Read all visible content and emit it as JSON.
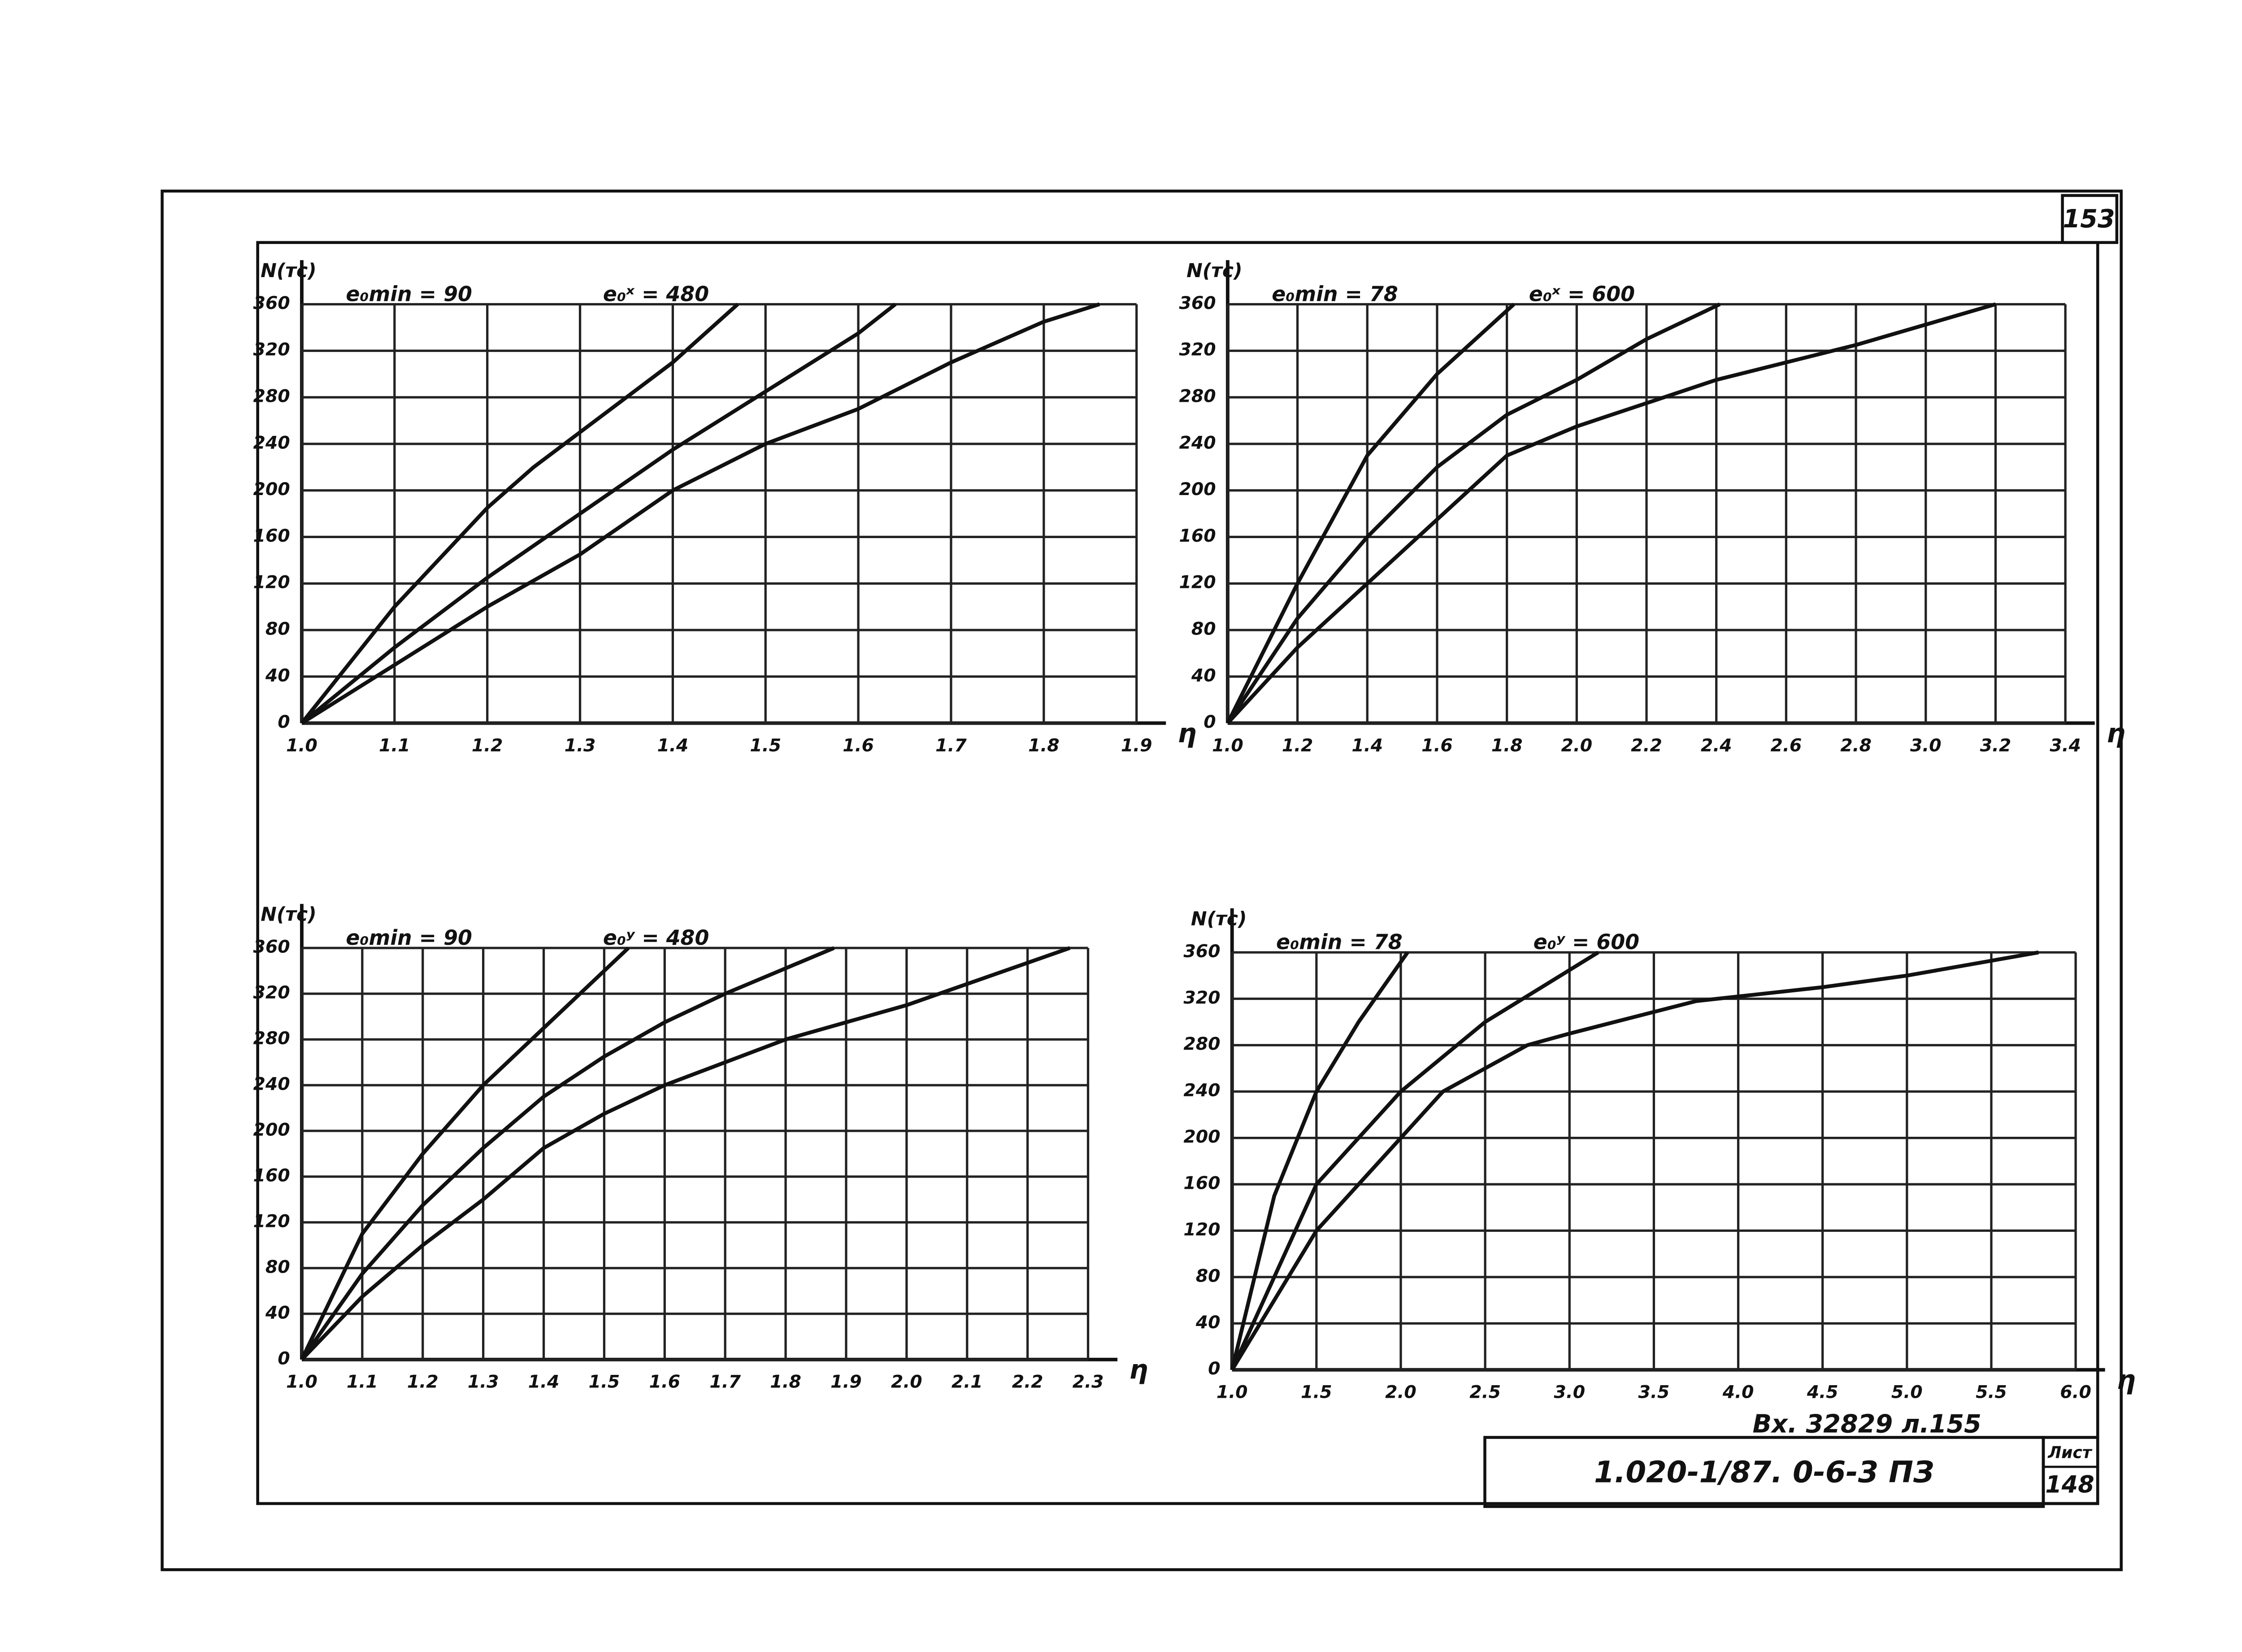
{
  "sheet": {
    "page_number": "153",
    "stamp": "Вх. 32829 л.155",
    "designation": "1.020-1/87. 0-6-3 ПЗ",
    "sheet_label": "Лист",
    "sheet_number": "148"
  },
  "chart_data": [
    {
      "type": "line",
      "ylabel": "N(тс)",
      "xlabel": "η",
      "annotations": [
        "e₀min = 90",
        "e₀ˣ = 480"
      ],
      "xlim": [
        1.0,
        1.9
      ],
      "ylim": [
        0,
        360
      ],
      "xticks": [
        {
          "value": 1.0,
          "label": "1.0"
        },
        1.1,
        1.2,
        1.3,
        1.4,
        1.5,
        1.6,
        1.7,
        1.8,
        1.9
      ],
      "yticks": [
        0,
        40,
        80,
        120,
        160,
        200,
        240,
        280,
        320,
        360
      ],
      "grid": true,
      "series": [
        {
          "color": "#111111",
          "x": [
            1.0,
            1.1,
            1.2,
            1.25,
            1.3,
            1.4,
            1.47
          ],
          "values": [
            0,
            100,
            185,
            220,
            250,
            310,
            360
          ]
        },
        {
          "color": "#111111",
          "x": [
            1.0,
            1.1,
            1.2,
            1.3,
            1.4,
            1.5,
            1.6,
            1.64
          ],
          "values": [
            0,
            65,
            125,
            180,
            235,
            285,
            335,
            360
          ]
        },
        {
          "color": "#111111",
          "x": [
            1.0,
            1.1,
            1.2,
            1.3,
            1.4,
            1.5,
            1.6,
            1.7,
            1.8,
            1.86
          ],
          "values": [
            0,
            50,
            100,
            145,
            200,
            240,
            270,
            310,
            345,
            360
          ]
        }
      ]
    },
    {
      "type": "line",
      "ylabel": "N(тс)",
      "xlabel": "η",
      "annotations": [
        "e₀min = 78",
        "e₀ˣ = 600"
      ],
      "xlim": [
        1.0,
        3.4
      ],
      "ylim": [
        0,
        360
      ],
      "xticks": [
        {
          "value": 1.0,
          "label": "1.0"
        },
        1.2,
        1.4,
        1.6,
        1.8,
        {
          "value": 2.0,
          "label": "2.0"
        },
        2.2,
        2.4,
        2.6,
        2.8,
        {
          "value": 3.0,
          "label": "3.0"
        },
        3.2,
        3.4
      ],
      "yticks": [
        0,
        40,
        80,
        120,
        160,
        200,
        240,
        280,
        320,
        360
      ],
      "grid": true,
      "series": [
        {
          "color": "#111111",
          "x": [
            1.0,
            1.2,
            1.4,
            1.6,
            1.82
          ],
          "values": [
            0,
            120,
            230,
            300,
            360
          ]
        },
        {
          "color": "#111111",
          "x": [
            1.0,
            1.2,
            1.4,
            1.6,
            1.8,
            2.0,
            2.2,
            2.41
          ],
          "values": [
            0,
            90,
            160,
            220,
            265,
            295,
            330,
            360
          ]
        },
        {
          "color": "#111111",
          "x": [
            1.0,
            1.2,
            1.4,
            1.6,
            1.8,
            2.0,
            2.2,
            2.4,
            2.8,
            3.2
          ],
          "values": [
            0,
            65,
            120,
            175,
            230,
            255,
            275,
            295,
            325,
            360
          ]
        }
      ]
    },
    {
      "type": "line",
      "ylabel": "N(тс)",
      "xlabel": "η",
      "annotations": [
        "e₀min = 90",
        "e₀ʸ = 480"
      ],
      "xlim": [
        1.0,
        2.3
      ],
      "ylim": [
        0,
        360
      ],
      "xticks": [
        {
          "value": 1.0,
          "label": "1.0"
        },
        1.1,
        1.2,
        1.3,
        1.4,
        1.5,
        1.6,
        1.7,
        1.8,
        1.9,
        {
          "value": 2.0,
          "label": "2.0"
        },
        2.1,
        2.2,
        2.3
      ],
      "yticks": [
        0,
        40,
        80,
        120,
        160,
        200,
        240,
        280,
        320,
        360
      ],
      "grid": true,
      "series": [
        {
          "color": "#111111",
          "x": [
            1.0,
            1.1,
            1.2,
            1.3,
            1.4,
            1.54
          ],
          "values": [
            0,
            110,
            180,
            240,
            290,
            360
          ]
        },
        {
          "color": "#111111",
          "x": [
            1.0,
            1.1,
            1.2,
            1.3,
            1.4,
            1.5,
            1.6,
            1.7,
            1.88
          ],
          "values": [
            0,
            75,
            135,
            185,
            230,
            265,
            295,
            320,
            360
          ]
        },
        {
          "color": "#111111",
          "x": [
            1.0,
            1.1,
            1.2,
            1.3,
            1.4,
            1.5,
            1.6,
            1.8,
            2.0,
            2.27
          ],
          "values": [
            0,
            55,
            100,
            140,
            185,
            215,
            240,
            280,
            310,
            360
          ]
        }
      ]
    },
    {
      "type": "line",
      "ylabel": "N(тс)",
      "xlabel": "η",
      "annotations": [
        "e₀min = 78",
        "e₀ʸ = 600"
      ],
      "xlim": [
        1.0,
        6.0
      ],
      "ylim": [
        0,
        360
      ],
      "xticks": [
        {
          "value": 1.0,
          "label": "1.0"
        },
        1.5,
        {
          "value": 2.0,
          "label": "2.0"
        },
        2.5,
        {
          "value": 3.0,
          "label": "3.0"
        },
        3.5,
        {
          "value": 4.0,
          "label": "4.0"
        },
        4.5,
        {
          "value": 5.0,
          "label": "5.0"
        },
        5.5,
        {
          "value": 6.0,
          "label": "6.0"
        }
      ],
      "yticks": [
        0,
        40,
        80,
        120,
        160,
        200,
        240,
        280,
        320,
        360
      ],
      "grid": true,
      "series": [
        {
          "color": "#111111",
          "x": [
            1.0,
            1.25,
            1.5,
            1.75,
            2.04
          ],
          "values": [
            0,
            150,
            240,
            300,
            360
          ]
        },
        {
          "color": "#111111",
          "x": [
            1.0,
            1.5,
            2.0,
            2.5,
            3.17
          ],
          "values": [
            0,
            160,
            240,
            300,
            360
          ]
        },
        {
          "color": "#111111",
          "x": [
            1.0,
            1.5,
            2.0,
            2.25,
            2.75,
            3.0,
            3.75,
            4.5,
            5.0,
            5.78
          ],
          "values": [
            0,
            120,
            200,
            240,
            280,
            290,
            318,
            330,
            340,
            360
          ]
        }
      ]
    }
  ]
}
